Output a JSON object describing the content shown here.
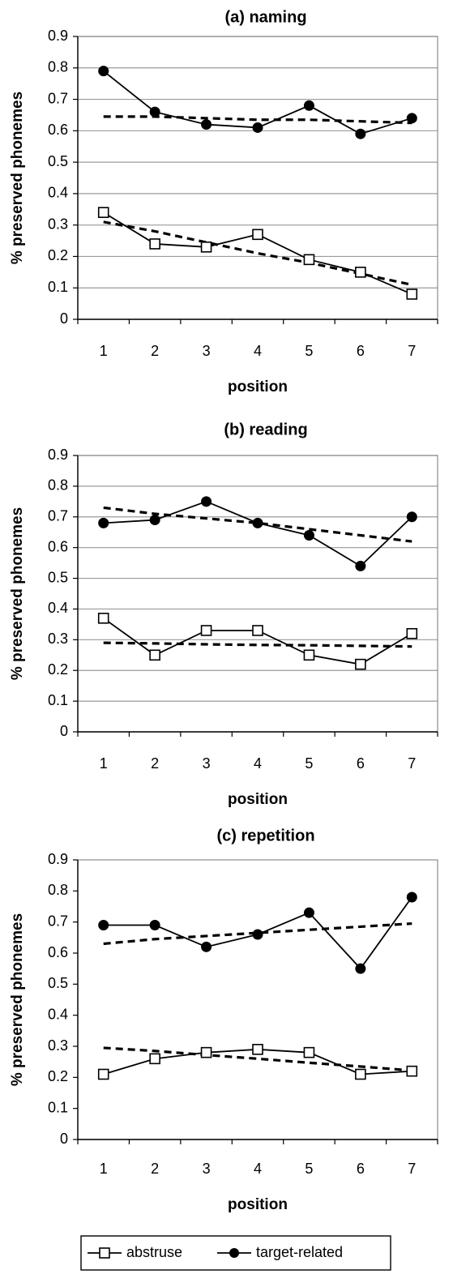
{
  "chart_data": [
    {
      "type": "line",
      "title": "(a) naming",
      "xlabel": "position",
      "ylabel": "% preserved phonemes",
      "x": [
        1,
        2,
        3,
        4,
        5,
        6,
        7
      ],
      "ylim": [
        0,
        0.9
      ],
      "yticks": [
        "0",
        "0.1",
        "0.2",
        "0.3",
        "0.4",
        "0.5",
        "0.6",
        "0.7",
        "0.8",
        "0.9"
      ],
      "xticks": [
        "1",
        "2",
        "3",
        "4",
        "5",
        "6",
        "7"
      ],
      "grid": true,
      "series": [
        {
          "name": "abstruse",
          "marker": "open-square",
          "values": [
            0.34,
            0.24,
            0.23,
            0.27,
            0.19,
            0.15,
            0.08
          ]
        },
        {
          "name": "target-related",
          "marker": "filled-circle",
          "values": [
            0.79,
            0.66,
            0.62,
            0.61,
            0.68,
            0.59,
            0.64
          ]
        }
      ],
      "trendlines": [
        {
          "values": [
            0.31,
            0.28,
            0.245,
            0.21,
            0.18,
            0.145,
            0.11
          ]
        },
        {
          "values": [
            0.645,
            0.645,
            0.64,
            0.635,
            0.635,
            0.63,
            0.625
          ]
        }
      ]
    },
    {
      "type": "line",
      "title": "(b) reading",
      "xlabel": "position",
      "ylabel": "% preserved phonemes",
      "x": [
        1,
        2,
        3,
        4,
        5,
        6,
        7
      ],
      "ylim": [
        0,
        0.9
      ],
      "yticks": [
        "0",
        "0.1",
        "0.2",
        "0.3",
        "0.4",
        "0.5",
        "0.6",
        "0.7",
        "0.8",
        "0.9"
      ],
      "xticks": [
        "1",
        "2",
        "3",
        "4",
        "5",
        "6",
        "7"
      ],
      "grid": true,
      "series": [
        {
          "name": "abstruse",
          "marker": "open-square",
          "values": [
            0.37,
            0.25,
            0.33,
            0.33,
            0.25,
            0.22,
            0.32
          ]
        },
        {
          "name": "target-related",
          "marker": "filled-circle",
          "values": [
            0.68,
            0.69,
            0.75,
            0.68,
            0.64,
            0.54,
            0.7
          ]
        }
      ],
      "trendlines": [
        {
          "values": [
            0.29,
            0.288,
            0.285,
            0.283,
            0.282,
            0.28,
            0.278
          ]
        },
        {
          "values": [
            0.73,
            0.71,
            0.695,
            0.68,
            0.66,
            0.64,
            0.62
          ]
        }
      ]
    },
    {
      "type": "line",
      "title": "(c) repetition",
      "xlabel": "position",
      "ylabel": "% preserved phonemes",
      "x": [
        1,
        2,
        3,
        4,
        5,
        6,
        7
      ],
      "ylim": [
        0,
        0.9
      ],
      "yticks": [
        "0",
        "0.1",
        "0.2",
        "0.3",
        "0.4",
        "0.5",
        "0.6",
        "0.7",
        "0.8",
        "0.9"
      ],
      "xticks": [
        "1",
        "2",
        "3",
        "4",
        "5",
        "6",
        "7"
      ],
      "grid": false,
      "series": [
        {
          "name": "abstruse",
          "marker": "open-square",
          "values": [
            0.21,
            0.26,
            0.28,
            0.29,
            0.28,
            0.21,
            0.22
          ]
        },
        {
          "name": "target-related",
          "marker": "filled-circle",
          "values": [
            0.69,
            0.69,
            0.62,
            0.66,
            0.73,
            0.55,
            0.78
          ]
        }
      ],
      "trendlines": [
        {
          "values": [
            0.295,
            0.285,
            0.272,
            0.26,
            0.247,
            0.235,
            0.222
          ]
        },
        {
          "values": [
            0.63,
            0.645,
            0.655,
            0.665,
            0.675,
            0.685,
            0.695
          ]
        }
      ]
    }
  ],
  "legend": {
    "position": "bottom",
    "items": [
      {
        "label": "abstruse",
        "marker": "open-square"
      },
      {
        "label": "target-related",
        "marker": "filled-circle"
      }
    ]
  }
}
